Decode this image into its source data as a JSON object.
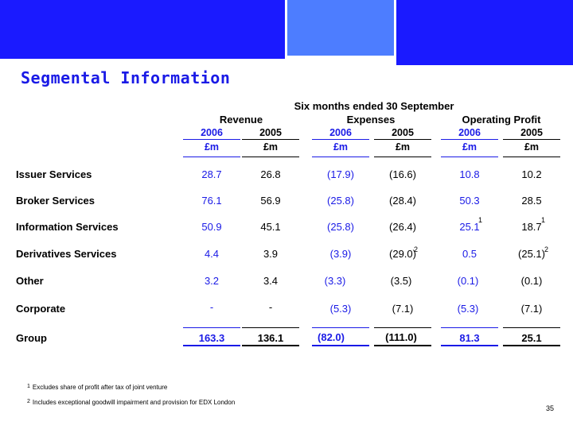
{
  "title": "Segmental Information",
  "header": {
    "period": "Six months ended 30 September",
    "groups": [
      "Revenue",
      "Expenses",
      "Operating Profit"
    ],
    "years": [
      "2006",
      "2005",
      "2006",
      "2005",
      "2006",
      "2005"
    ],
    "units": [
      "£m",
      "£m",
      "£m",
      "£m",
      "£m",
      "£m"
    ]
  },
  "rows": [
    {
      "label": "Issuer Services",
      "values": [
        "28.7",
        "26.8",
        "(17.9)",
        "(16.6)",
        "10.8",
        "10.2"
      ]
    },
    {
      "label": "Broker Services",
      "values": [
        "76.1",
        "56.9",
        "(25.8)",
        "(28.4)",
        "50.3",
        "28.5"
      ]
    },
    {
      "label": "Information Services",
      "values": [
        "50.9",
        "45.1",
        "(25.8)",
        "(26.4)",
        "25.1",
        "18.7"
      ]
    },
    {
      "label": "Derivatives Services",
      "values": [
        "4.4",
        "3.9",
        "(3.9)",
        "(29.0)",
        "0.5",
        "(25.1)"
      ]
    },
    {
      "label": "Other",
      "values": [
        "3.2",
        "3.4",
        "(3.3)",
        "(3.5)",
        "(0.1)",
        "(0.1)"
      ]
    },
    {
      "label": "Corporate",
      "values": [
        "-",
        "-",
        "(5.3)",
        "(7.1)",
        "(5.3)",
        "(7.1)"
      ]
    },
    {
      "label": "Group",
      "values": [
        "163.3",
        "136.1",
        "(82.0)",
        "(111.0)",
        "81.3",
        "25.1"
      ]
    }
  ],
  "superscripts": {
    "one": "1",
    "two": "2"
  },
  "footnotes": [
    {
      "marker": "1",
      "text": "Excludes share of profit after tax of joint venture"
    },
    {
      "marker": "2",
      "text": "Includes exceptional goodwill impairment and provision for EDX London"
    }
  ],
  "page_number": "35",
  "colors": {
    "accent": "#1a1ae6",
    "banner": "#1a1aff",
    "banner_light": "#4d7dff"
  }
}
